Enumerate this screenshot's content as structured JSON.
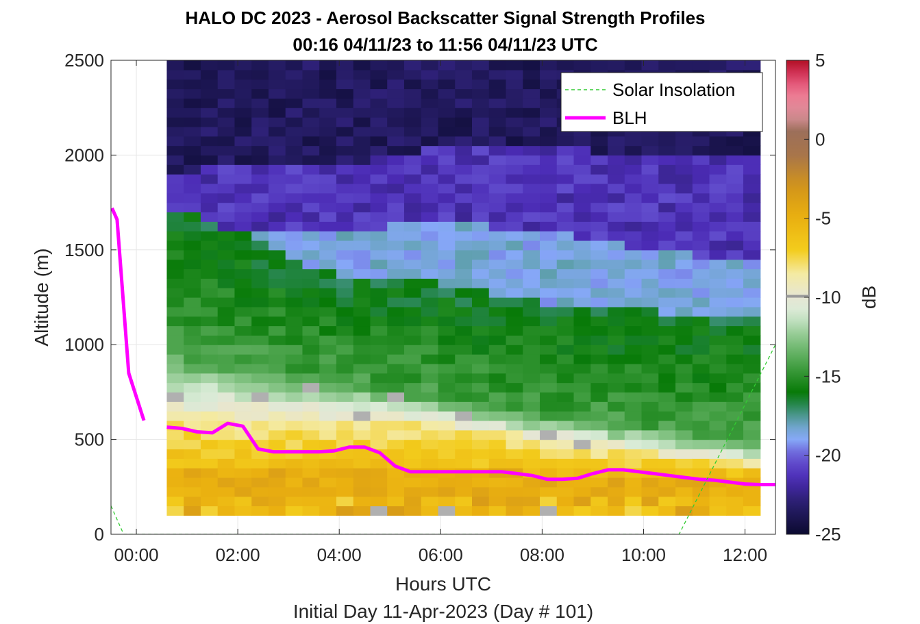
{
  "chart_data": {
    "type": "heatmap",
    "title": [
      "HALO DC 2023 - Aerosol Backscatter Signal Strength Profiles",
      "00:16 04/11/23 to 11:56 04/11/23  UTC"
    ],
    "xlabel": "Hours UTC",
    "xlabel2": "Initial Day 11-Apr-2023 (Day # 101)",
    "ylabel": "Altitude (m)",
    "xlim": [
      -0.5,
      12.6
    ],
    "ylim": [
      0,
      2500
    ],
    "xticks": [
      0,
      2,
      4,
      6,
      8,
      10,
      12
    ],
    "xtick_labels": [
      "00:00",
      "02:00",
      "04:00",
      "06:00",
      "08:00",
      "10:00",
      "12:00"
    ],
    "yticks": [
      0,
      500,
      1000,
      1500,
      2000,
      2500
    ],
    "ytick_labels": [
      "0",
      "500",
      "1000",
      "1500",
      "2000",
      "2500"
    ],
    "grid": true,
    "legend": {
      "placement": "top-right",
      "entries": [
        "Solar Insolation",
        "BLH"
      ]
    },
    "colorbar": {
      "label": "dB",
      "range": [
        -25,
        5
      ],
      "ticks": [
        5,
        0,
        -5,
        -10,
        -15,
        -20,
        -25
      ],
      "tick_labels": [
        "5",
        "0",
        "-5",
        "-10",
        "-15",
        "-20",
        "-25"
      ],
      "colors": [
        "#131640",
        "#2a1f6e",
        "#4b2bb5",
        "#6455d0",
        "#7fa6f5",
        "#5e9db8",
        "#2f8a60",
        "#0b7a0b",
        "#3f9e3f",
        "#8fc98f",
        "#d9ecd8",
        "#e8e8d8",
        "#f3e9a0",
        "#f2c40a",
        "#e9a60c",
        "#c7891c",
        "#9a6a4d",
        "#c07f7b",
        "#f28ca0",
        "#e5507a",
        "#b21025"
      ],
      "value_map": [
        [
          -25,
          "#0b0a30"
        ],
        [
          -23,
          "#2a1f6e"
        ],
        [
          -21.5,
          "#4b2bb5"
        ],
        [
          -20,
          "#6a5ad6"
        ],
        [
          -19,
          "#86a8f7"
        ],
        [
          -18,
          "#6aa4c0"
        ],
        [
          -17,
          "#2f8a60"
        ],
        [
          -16,
          "#087a08"
        ],
        [
          -14.5,
          "#3e9c3e"
        ],
        [
          -12.5,
          "#8dc88d"
        ],
        [
          -11,
          "#d8ebd6"
        ],
        [
          -10,
          "#e6e6d4"
        ],
        [
          -8.5,
          "#f4eaa2"
        ],
        [
          -7,
          "#f3cc1c"
        ],
        [
          -5,
          "#eab010"
        ],
        [
          -3,
          "#d2951a"
        ],
        [
          -1,
          "#a8754a"
        ],
        [
          0.5,
          "#9c6f5a"
        ],
        [
          1.5,
          "#d9909a"
        ],
        [
          3,
          "#f07892"
        ],
        [
          4,
          "#d83a62"
        ],
        [
          5,
          "#b21025"
        ]
      ]
    },
    "heatmap": {
      "x_start": 0.6,
      "x_end": 12.3,
      "x_count": 35,
      "y_start": 100,
      "y_end": 2500,
      "y_count": 48,
      "surface_rows": 2,
      "gray_cells": [
        [
          0.9,
          700
        ],
        [
          2.6,
          700
        ],
        [
          3.6,
          750
        ],
        [
          4.3,
          600
        ],
        [
          5.0,
          700
        ],
        [
          6.3,
          600
        ],
        [
          8.0,
          500
        ],
        [
          8.7,
          450
        ],
        [
          4.9,
          100
        ],
        [
          6.2,
          100
        ],
        [
          8.1,
          100
        ]
      ],
      "boundaries": {
        "x": [
          0.6,
          2.0,
          4.0,
          6.0,
          8.0,
          10.0,
          12.3
        ],
        "surface_top": [
          360,
          360,
          360,
          340,
          320,
          320,
          320
        ],
        "aerosol_top": [
          620,
          610,
          600,
          580,
          500,
          430,
          370
        ],
        "transition_top": [
          950,
          880,
          820,
          700,
          620,
          560,
          480
        ],
        "green_top": [
          1720,
          1600,
          1350,
          1330,
          1220,
          1180,
          1150
        ],
        "blue_top": [
          1720,
          1600,
          1600,
          1650,
          1600,
          1500,
          1430
        ],
        "residual_top": [
          1900,
          1950,
          1950,
          2050,
          2050,
          2000,
          2000
        ]
      }
    },
    "series": [
      {
        "name": "BLH",
        "color": "#ff00ff",
        "segments": [
          {
            "x": [
              -0.48,
              -0.38,
              -0.15,
              0.15
            ],
            "y": [
              1720,
              1660,
              850,
              600
            ]
          },
          {
            "x": [
              0.6,
              0.9,
              1.2,
              1.5,
              1.8,
              2.1,
              2.4,
              2.7,
              3.0,
              3.3,
              3.6,
              3.9,
              4.2,
              4.5,
              4.8,
              5.1,
              5.4,
              5.7,
              6.0,
              6.3,
              6.6,
              6.9,
              7.2,
              7.5,
              7.8,
              8.1,
              8.4,
              8.7,
              9.0,
              9.3,
              9.6,
              9.9,
              10.2,
              10.5,
              10.8,
              11.1,
              11.4,
              11.7,
              12.0,
              12.3,
              12.6
            ],
            "y": [
              565,
              558,
              540,
              535,
              585,
              570,
              450,
              435,
              435,
              435,
              435,
              440,
              460,
              460,
              430,
              360,
              330,
              330,
              330,
              330,
              330,
              330,
              330,
              320,
              310,
              290,
              290,
              295,
              320,
              340,
              340,
              330,
              320,
              310,
              300,
              290,
              285,
              275,
              265,
              262,
              262
            ]
          }
        ]
      },
      {
        "name": "Solar Insolation",
        "color": "#33cc33",
        "style": "dashed",
        "x": [
          -0.5,
          -0.25,
          10.7,
          12.6
        ],
        "y": [
          150,
          0,
          0,
          1000
        ]
      }
    ]
  }
}
